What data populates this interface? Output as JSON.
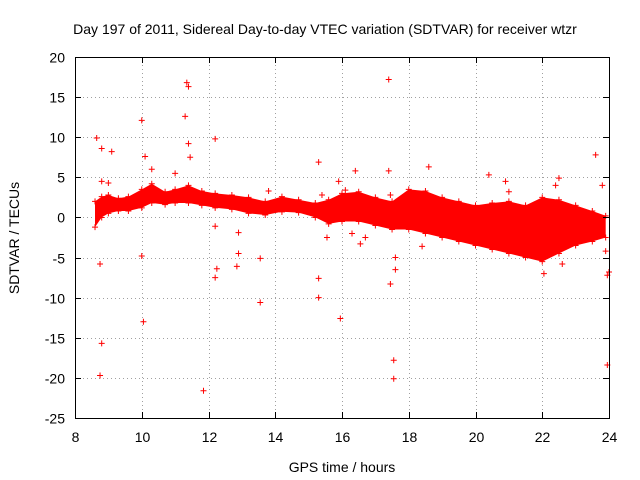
{
  "chart_data": {
    "type": "scatter",
    "title": "Day 197 of 2011, Sidereal Day-to-day VTEC variation (SDTVAR) for receiver wtzr",
    "xlabel": "GPS time / hours",
    "ylabel": "SDTVAR / TECUs",
    "xlim": [
      8,
      24
    ],
    "ylim": [
      -25,
      20
    ],
    "xticks": [
      8,
      10,
      12,
      14,
      16,
      18,
      20,
      22,
      24
    ],
    "yticks": [
      -25,
      -20,
      -15,
      -10,
      -5,
      0,
      5,
      10,
      15,
      20
    ],
    "xtick_labels": [
      "8",
      "10",
      "12",
      "14",
      "16",
      "18",
      "20",
      "22",
      "24"
    ],
    "ytick_labels": [
      "-25",
      "-20",
      "-15",
      "-10",
      "-5",
      "0",
      "5",
      "10",
      "15",
      "20"
    ],
    "grid": true,
    "marker": "+",
    "color": "#ff0000",
    "series": [
      {
        "name": "SDTVAR",
        "dense_band": [
          {
            "x": 8.6,
            "low": -1.2,
            "high": 2.0
          },
          {
            "x": 8.8,
            "low": 0.0,
            "high": 2.6
          },
          {
            "x": 9.0,
            "low": 0.5,
            "high": 2.8
          },
          {
            "x": 9.3,
            "low": 0.8,
            "high": 2.4
          },
          {
            "x": 9.6,
            "low": 0.8,
            "high": 2.6
          },
          {
            "x": 10.0,
            "low": 1.2,
            "high": 3.5
          },
          {
            "x": 10.3,
            "low": 1.8,
            "high": 4.2
          },
          {
            "x": 10.7,
            "low": 1.6,
            "high": 3.2
          },
          {
            "x": 11.0,
            "low": 1.8,
            "high": 3.5
          },
          {
            "x": 11.4,
            "low": 1.8,
            "high": 4.0
          },
          {
            "x": 11.8,
            "low": 1.5,
            "high": 3.3
          },
          {
            "x": 12.2,
            "low": 1.2,
            "high": 3.0
          },
          {
            "x": 12.7,
            "low": 1.0,
            "high": 2.8
          },
          {
            "x": 13.2,
            "low": 0.5,
            "high": 2.5
          },
          {
            "x": 13.7,
            "low": 0.3,
            "high": 2.0
          },
          {
            "x": 14.2,
            "low": 0.7,
            "high": 2.6
          },
          {
            "x": 14.7,
            "low": 0.6,
            "high": 2.2
          },
          {
            "x": 15.2,
            "low": 0.0,
            "high": 1.8
          },
          {
            "x": 15.6,
            "low": -0.8,
            "high": 2.2
          },
          {
            "x": 16.0,
            "low": -0.5,
            "high": 3.0
          },
          {
            "x": 16.5,
            "low": -0.5,
            "high": 3.2
          },
          {
            "x": 17.0,
            "low": -1.0,
            "high": 2.5
          },
          {
            "x": 17.5,
            "low": -1.5,
            "high": 2.0
          },
          {
            "x": 18.0,
            "low": -1.5,
            "high": 3.5
          },
          {
            "x": 18.5,
            "low": -2.0,
            "high": 3.3
          },
          {
            "x": 19.0,
            "low": -2.5,
            "high": 2.5
          },
          {
            "x": 19.5,
            "low": -3.0,
            "high": 2.0
          },
          {
            "x": 20.0,
            "low": -3.5,
            "high": 1.5
          },
          {
            "x": 20.5,
            "low": -4.0,
            "high": 1.8
          },
          {
            "x": 21.0,
            "low": -4.5,
            "high": 2.0
          },
          {
            "x": 21.5,
            "low": -5.0,
            "high": 1.5
          },
          {
            "x": 22.0,
            "low": -5.5,
            "high": 2.5
          },
          {
            "x": 22.5,
            "low": -4.5,
            "high": 2.2
          },
          {
            "x": 23.0,
            "low": -3.5,
            "high": 1.5
          },
          {
            "x": 23.5,
            "low": -3.0,
            "high": 0.8
          },
          {
            "x": 23.9,
            "low": -2.5,
            "high": 0.2
          }
        ],
        "points": [
          {
            "x": 8.65,
            "y": 9.9
          },
          {
            "x": 8.8,
            "y": 8.6
          },
          {
            "x": 9.1,
            "y": 8.2
          },
          {
            "x": 8.75,
            "y": -5.8
          },
          {
            "x": 8.8,
            "y": -15.7
          },
          {
            "x": 8.75,
            "y": -19.7
          },
          {
            "x": 8.8,
            "y": 4.5
          },
          {
            "x": 9.0,
            "y": 4.3
          },
          {
            "x": 10.0,
            "y": 12.1
          },
          {
            "x": 10.0,
            "y": -4.8
          },
          {
            "x": 10.05,
            "y": -13.0
          },
          {
            "x": 10.1,
            "y": 7.6
          },
          {
            "x": 10.3,
            "y": 6.0
          },
          {
            "x": 11.3,
            "y": 12.6
          },
          {
            "x": 11.35,
            "y": 16.8
          },
          {
            "x": 11.4,
            "y": 16.3
          },
          {
            "x": 11.4,
            "y": 9.2
          },
          {
            "x": 11.45,
            "y": 7.5
          },
          {
            "x": 11.0,
            "y": 5.5
          },
          {
            "x": 11.85,
            "y": -21.6
          },
          {
            "x": 12.2,
            "y": 9.8
          },
          {
            "x": 12.2,
            "y": -1.1
          },
          {
            "x": 12.25,
            "y": -6.4
          },
          {
            "x": 12.2,
            "y": -7.5
          },
          {
            "x": 12.9,
            "y": -1.9
          },
          {
            "x": 12.9,
            "y": -4.5
          },
          {
            "x": 12.85,
            "y": -6.1
          },
          {
            "x": 13.55,
            "y": -5.1
          },
          {
            "x": 13.55,
            "y": -10.6
          },
          {
            "x": 13.8,
            "y": 3.3
          },
          {
            "x": 15.3,
            "y": 6.9
          },
          {
            "x": 15.3,
            "y": -7.6
          },
          {
            "x": 15.3,
            "y": -10.0
          },
          {
            "x": 15.4,
            "y": 2.8
          },
          {
            "x": 15.55,
            "y": -2.5
          },
          {
            "x": 15.9,
            "y": 4.5
          },
          {
            "x": 15.95,
            "y": -12.6
          },
          {
            "x": 16.1,
            "y": 3.4
          },
          {
            "x": 16.3,
            "y": -2.0
          },
          {
            "x": 16.4,
            "y": 5.8
          },
          {
            "x": 16.55,
            "y": -3.3
          },
          {
            "x": 16.7,
            "y": -2.5
          },
          {
            "x": 17.4,
            "y": 17.2
          },
          {
            "x": 17.4,
            "y": 5.8
          },
          {
            "x": 17.45,
            "y": 2.8
          },
          {
            "x": 17.45,
            "y": -8.3
          },
          {
            "x": 17.55,
            "y": -17.8
          },
          {
            "x": 17.55,
            "y": -20.1
          },
          {
            "x": 17.6,
            "y": -6.5
          },
          {
            "x": 17.6,
            "y": -5.0
          },
          {
            "x": 18.4,
            "y": -3.6
          },
          {
            "x": 18.6,
            "y": 6.3
          },
          {
            "x": 20.4,
            "y": 5.3
          },
          {
            "x": 20.9,
            "y": 4.5
          },
          {
            "x": 21.0,
            "y": 3.2
          },
          {
            "x": 22.05,
            "y": -7.0
          },
          {
            "x": 22.4,
            "y": 4.0
          },
          {
            "x": 22.5,
            "y": 4.9
          },
          {
            "x": 22.6,
            "y": -5.8
          },
          {
            "x": 23.6,
            "y": 7.8
          },
          {
            "x": 23.8,
            "y": 4.0
          },
          {
            "x": 23.9,
            "y": -4.2
          },
          {
            "x": 23.95,
            "y": -18.4
          },
          {
            "x": 23.95,
            "y": -7.2
          },
          {
            "x": 24.0,
            "y": -6.8
          }
        ]
      }
    ]
  }
}
